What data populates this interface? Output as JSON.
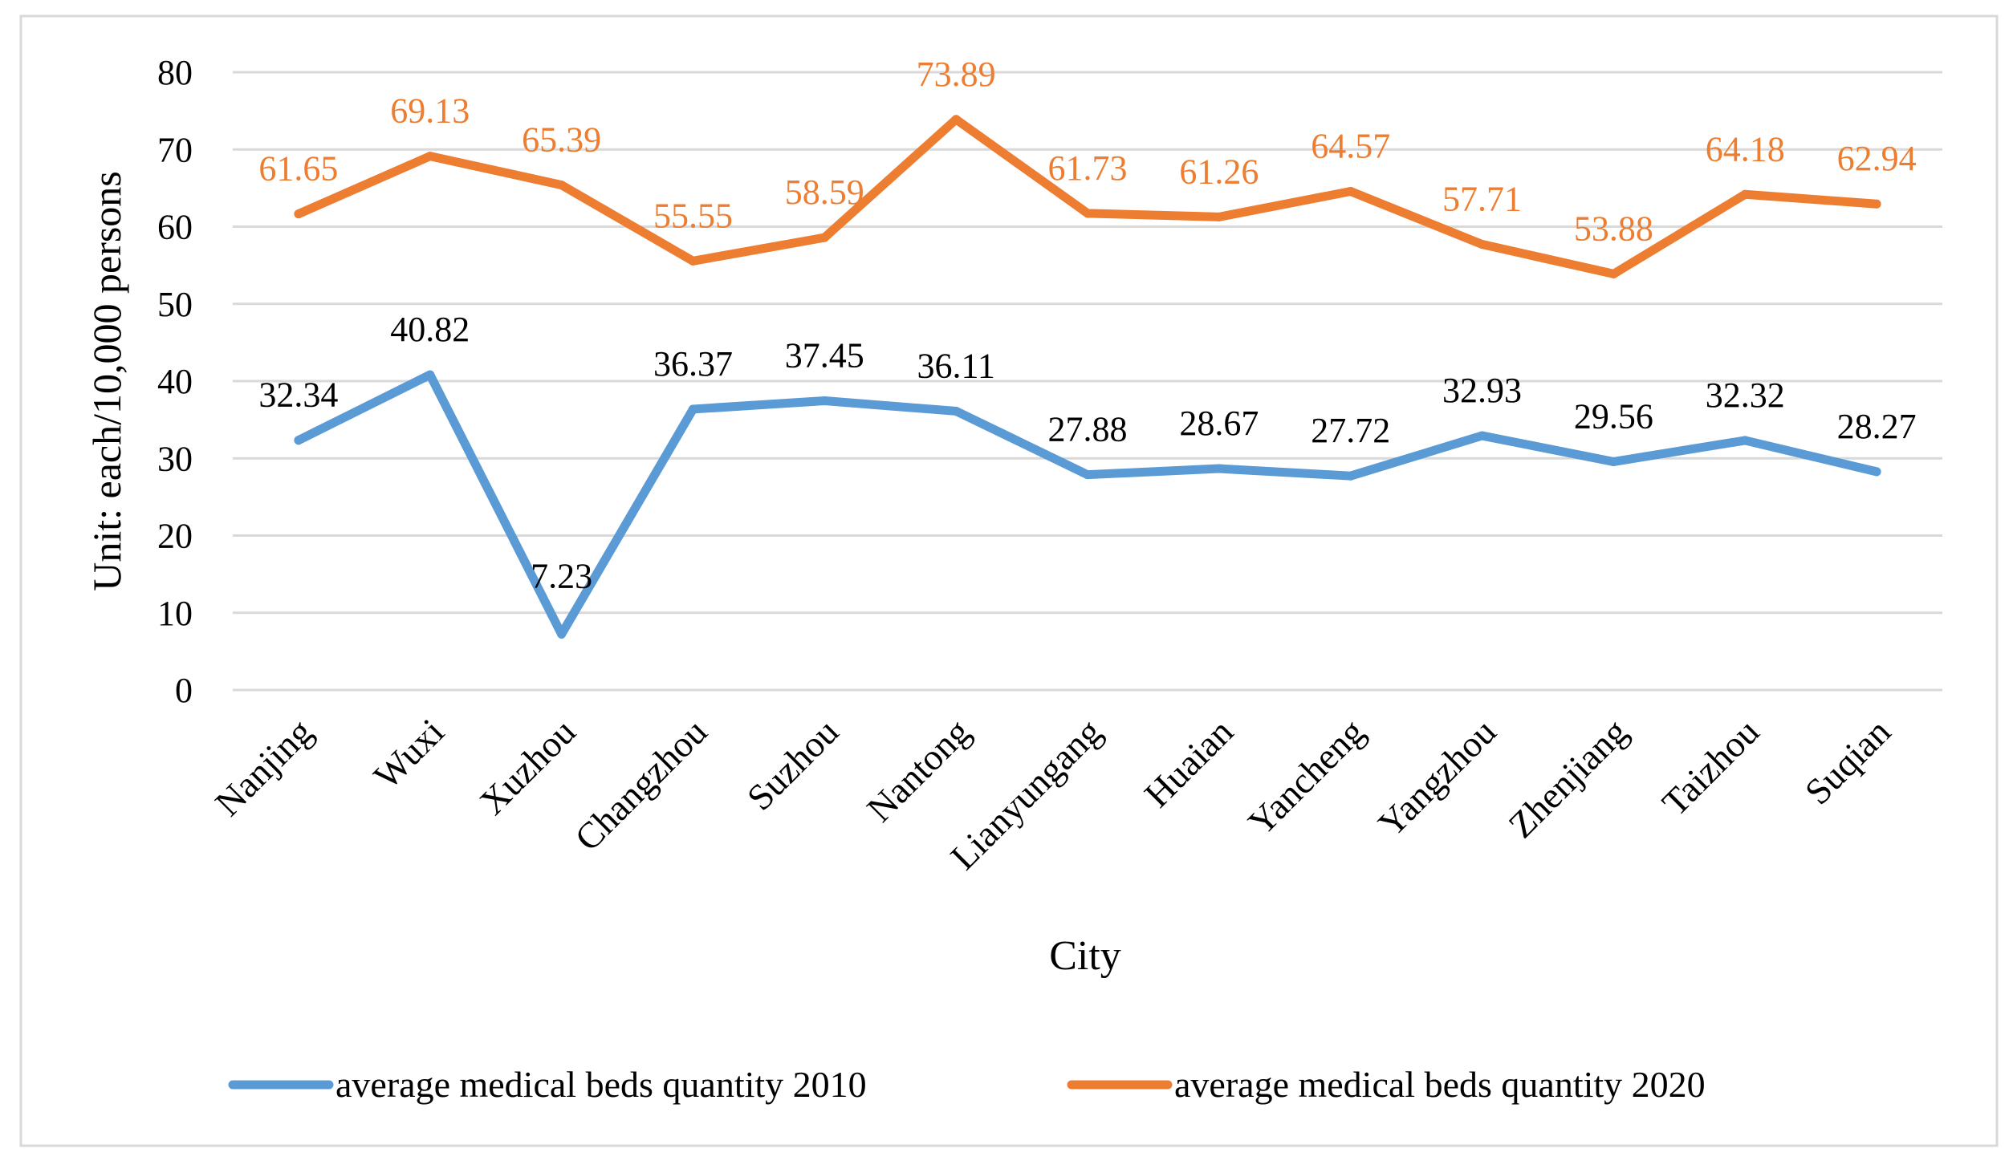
{
  "chart_data": {
    "type": "line",
    "title": "",
    "xlabel": "City",
    "ylabel": "Unit: each/10,000 persons",
    "ylim": [
      0,
      80
    ],
    "yticks": [
      0,
      10,
      20,
      30,
      40,
      50,
      60,
      70,
      80
    ],
    "grid": true,
    "legend_position": "bottom",
    "categories": [
      "Nanjing",
      "Wuxi",
      "Xuzhou",
      "Changzhou",
      "Suzhou",
      "Nantong",
      "Lianyungang",
      "Huaian",
      "Yancheng",
      "Yangzhou",
      "Zhenjiang",
      "Taizhou",
      "Suqian"
    ],
    "series": [
      {
        "name": "average medical beds quantity 2010",
        "color": "#5B9BD5",
        "label_color": "#000000",
        "values": [
          32.34,
          40.82,
          7.23,
          36.37,
          37.45,
          36.11,
          27.88,
          28.67,
          27.72,
          32.93,
          29.56,
          32.32,
          28.27
        ],
        "labels": [
          "32.34",
          "40.82",
          "7.23",
          "36.37",
          "37.45",
          "36.11",
          "27.88",
          "28.67",
          "27.72",
          "32.93",
          "29.56",
          "32.32",
          "28.27"
        ]
      },
      {
        "name": "average medical beds quantity 2020",
        "color": "#ED7D31",
        "label_color": "#ED7D31",
        "values": [
          61.65,
          69.13,
          65.39,
          55.55,
          58.59,
          73.89,
          61.73,
          61.26,
          64.57,
          57.71,
          53.88,
          64.18,
          62.94
        ],
        "labels": [
          "61.65",
          "69.13",
          "65.39",
          "55.55",
          "58.59",
          "73.89",
          "61.73",
          "61.26",
          "64.57",
          "57.71",
          "53.88",
          "64.18",
          "62.94"
        ]
      }
    ]
  }
}
